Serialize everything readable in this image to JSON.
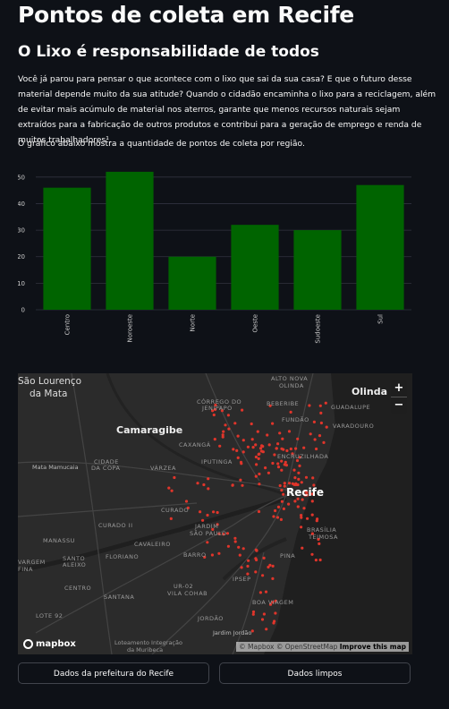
{
  "header": {
    "title": "Pontos de coleta em Recife",
    "subtitle": "O Lixo é responsabilidade de todos",
    "paragraph_1": "Você já parou para pensar o que acontece com o lixo que sai da sua casa? E que o futuro desse material depende muito da sua atitude? Quando o cidadão encaminha o lixo para a reciclagem, além de evitar mais acúmulo de material nos aterros, garante que menos recursos naturais sejam extraídos para a fabricação de outros produtos e contribui para a geração de emprego e renda de muitos trabalhadores¹.",
    "paragraph_2": "O gráfico abaixo mostra a quantidade de pontos de coleta por região."
  },
  "chart_data": {
    "type": "bar",
    "categories": [
      "Centro",
      "Noroeste",
      "Norte",
      "Oeste",
      "Sudoeste",
      "Sul"
    ],
    "values": [
      46,
      52,
      20,
      32,
      30,
      47
    ],
    "title": "",
    "xlabel": "",
    "ylabel": "",
    "ylim": [
      0,
      55
    ],
    "yticks": [
      0,
      10,
      20,
      30,
      40,
      50
    ],
    "bar_color": "#006400",
    "grid": true,
    "legend": "none"
  },
  "map": {
    "labels": [
      "São Lourenço",
      "da Mata",
      "Camaragibe",
      "Recife",
      "Olinda",
      "Mata Mamucaia",
      "CIDADE",
      "DA COPA",
      "VÁRZEA",
      "CURADO",
      "CURADO II",
      "MANASSU",
      "CAVALEIRO",
      "FLORIANO",
      "SANTO",
      "ALEIXO",
      "VARGEM",
      "FINA",
      "CENTRO",
      "SANTANA",
      "LOTE 92",
      "UR-02",
      "VILA COHAB",
      "JORDÃO",
      "BARRO",
      "JARDIM",
      "SÃO PAULO",
      "IPSEP",
      "BOA VIAGEM",
      "PINA",
      "BRASÍLIA",
      "TEIMOSA",
      "ENCRUZILHADA",
      "IPUTINGA",
      "CAXANGÁ",
      "CÓRREGO DO",
      "JENIPAPO",
      "BEBERIBE",
      "FUNDÃO",
      "ALTO NOVA",
      "OLINDA",
      "GUADALUPE",
      "VARADOURO",
      "Jardim Jordão",
      "Loteamento Integração",
      "da Muribeca"
    ],
    "zoom_in": "+",
    "zoom_out": "−",
    "logo": "mapbox",
    "attribution_1": "© Mapbox",
    "attribution_2": "© OpenStreetMap",
    "attribution_3": "Improve this map",
    "point_color": "#e0352b"
  },
  "buttons": {
    "prefeitura": "Dados da prefeitura do Recife",
    "limpos": "Dados limpos"
  }
}
